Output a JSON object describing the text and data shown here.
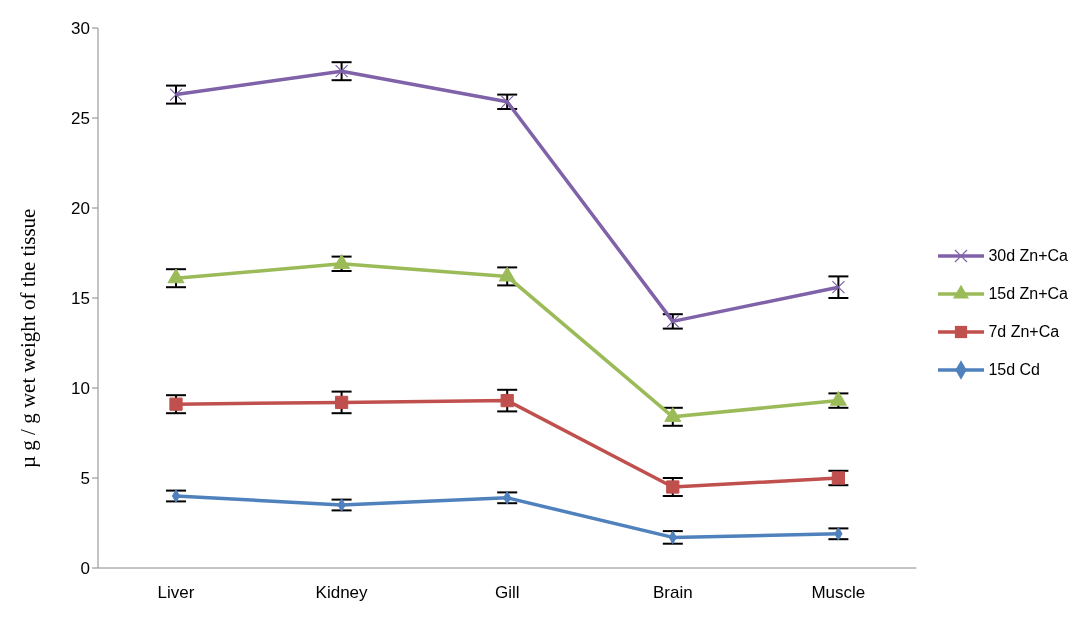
{
  "chart_data": {
    "type": "line",
    "ylabel": "µ g / g wet weight of the tissue",
    "categories": [
      "Liver",
      "Kidney",
      "Gill",
      "Brain",
      "Muscle"
    ],
    "series": [
      {
        "name": "30d Zn+Ca",
        "color": "#7f62a8",
        "marker": "cross",
        "values": [
          26.3,
          27.6,
          25.9,
          13.7,
          15.6
        ],
        "errors": [
          0.5,
          0.5,
          0.4,
          0.4,
          0.6
        ]
      },
      {
        "name": "15d Zn+Ca",
        "color": "#9bbb59",
        "marker": "triangle",
        "values": [
          16.1,
          16.9,
          16.2,
          8.4,
          9.3
        ],
        "errors": [
          0.5,
          0.4,
          0.5,
          0.5,
          0.4
        ]
      },
      {
        "name": "7d Zn+Ca",
        "color": "#c0504d",
        "marker": "square",
        "values": [
          9.1,
          9.2,
          9.3,
          4.5,
          5.0
        ],
        "errors": [
          0.5,
          0.6,
          0.6,
          0.5,
          0.4
        ]
      },
      {
        "name": "15d Cd",
        "color": "#4f81bd",
        "marker": "diamond",
        "values": [
          4.0,
          3.5,
          3.9,
          1.7,
          1.9
        ],
        "errors": [
          0.3,
          0.3,
          0.3,
          0.35,
          0.3
        ]
      }
    ],
    "ylim": [
      0,
      30
    ],
    "yticks": [
      0,
      5,
      10,
      15,
      20,
      25,
      30
    ],
    "grid": false,
    "legend": "right"
  }
}
